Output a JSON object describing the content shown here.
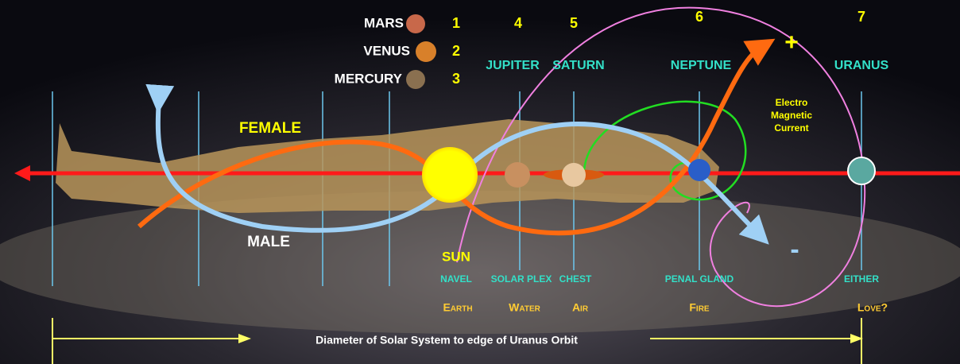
{
  "planet_key": [
    {
      "name": "MARS",
      "number": "1"
    },
    {
      "name": "VENUS",
      "number": "2"
    },
    {
      "name": "MERCURY",
      "number": "3"
    }
  ],
  "planets": [
    {
      "number": "4",
      "name": "JUPITER"
    },
    {
      "number": "5",
      "name": "SATURN"
    },
    {
      "number": "6",
      "name": "NEPTUNE"
    },
    {
      "number": "7",
      "name": "URANUS"
    }
  ],
  "labels": {
    "female": "FEMALE",
    "male": "MALE",
    "sun": "SUN",
    "plus": "+",
    "minus": "-",
    "current": [
      "Electro",
      "Magnetic",
      "Current"
    ]
  },
  "chakras": [
    "NAVEL",
    "SOLAR PLEX",
    "CHEST",
    "PENAL GLAND",
    "EITHER"
  ],
  "elements": [
    "Earth",
    "Water",
    "Air",
    "Fire",
    "Love?"
  ],
  "footer": "Diameter of Solar System  to edge of Uranus Orbit"
}
